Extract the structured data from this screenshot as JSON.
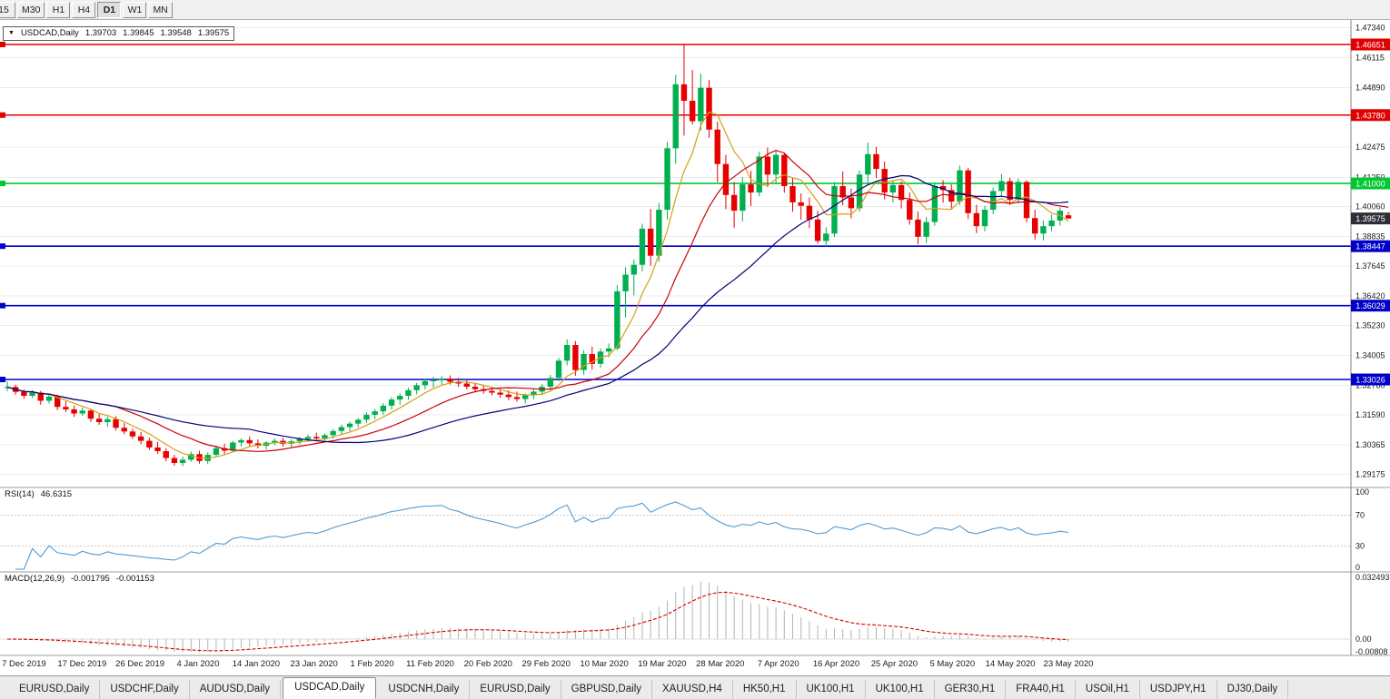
{
  "toolbar": {
    "timeframes": [
      {
        "label": "15",
        "active": false
      },
      {
        "label": "M30",
        "active": false
      },
      {
        "label": "H1",
        "active": false
      },
      {
        "label": "H4",
        "active": false
      },
      {
        "label": "D1",
        "active": true
      },
      {
        "label": "W1",
        "active": false
      },
      {
        "label": "MN",
        "active": false
      }
    ]
  },
  "header": {
    "collapser": "▼",
    "symbol": "USDCAD,Daily",
    "open": "1.39703",
    "high": "1.39845",
    "low": "1.39548",
    "close": "1.39575"
  },
  "price_axis": {
    "ticks": [
      "1.47340",
      "1.46115",
      "1.44890",
      "1.43665",
      "1.42475",
      "1.41250",
      "1.40060",
      "1.38835",
      "1.37645",
      "1.36420",
      "1.35230",
      "1.34005",
      "1.32780",
      "1.31590",
      "1.30365",
      "1.29175"
    ]
  },
  "hlines": [
    {
      "price": 1.46651,
      "label": "1.46651",
      "color": "#e00000"
    },
    {
      "price": 1.4378,
      "label": "1.43780",
      "color": "#e00000"
    },
    {
      "price": 1.41,
      "label": "1.41000",
      "color": "#00c832"
    },
    {
      "price": 1.38447,
      "label": "1.38447",
      "color": "#0000c8"
    },
    {
      "price": 1.36029,
      "label": "1.36029",
      "color": "#0000c8"
    },
    {
      "price": 1.33026,
      "label": "1.33026",
      "color": "#0000c8"
    }
  ],
  "current_price": {
    "value": 1.39575,
    "label": "1.39575",
    "badge_bg": "#2e2e38"
  },
  "indicators": {
    "rsi": {
      "label": "RSI(14)",
      "value": "46.6315",
      "line_color": "#4f9bd5",
      "levels": [
        70,
        30
      ],
      "axis_ticks": [
        {
          "v": 100,
          "label": "100"
        },
        {
          "v": 70,
          "label": "70"
        },
        {
          "v": 30,
          "label": "30"
        },
        {
          "v": 0,
          "label": "0"
        }
      ]
    },
    "macd": {
      "label": "MACD(12,26,9)",
      "value_main": "-0.001795",
      "value_signal": "-0.001153",
      "histogram_color": "#b4b4b4",
      "signal_color": "#d40000",
      "axis_ticks": [
        {
          "v": 0.032493,
          "label": "0.032493"
        },
        {
          "v": 0,
          "label": "0.00"
        },
        {
          "v": -0.00808,
          "label": "-0.00808"
        }
      ]
    }
  },
  "x_axis": {
    "labels": [
      "7 Dec 2019",
      "17 Dec 2019",
      "26 Dec 2019",
      "4 Jan 2020",
      "14 Jan 2020",
      "23 Jan 2020",
      "1 Feb 2020",
      "11 Feb 2020",
      "20 Feb 2020",
      "29 Feb 2020",
      "10 Mar 2020",
      "19 Mar 2020",
      "28 Mar 2020",
      "7 Apr 2020",
      "16 Apr 2020",
      "25 Apr 2020",
      "5 May 2020",
      "14 May 2020",
      "23 May 2020"
    ]
  },
  "tabs": [
    {
      "label": "EURUSD,Daily",
      "active": false
    },
    {
      "label": "USDCHF,Daily",
      "active": false
    },
    {
      "label": "AUDUSD,Daily",
      "active": false
    },
    {
      "label": "USDCAD,Daily",
      "active": true
    },
    {
      "label": "USDCNH,Daily",
      "active": false
    },
    {
      "label": "EURUSD,Daily",
      "active": false
    },
    {
      "label": "GBPUSD,Daily",
      "active": false
    },
    {
      "label": "XAUUSD,H4",
      "active": false
    },
    {
      "label": "HK50,H1",
      "active": false
    },
    {
      "label": "UK100,H1",
      "active": false
    },
    {
      "label": "UK100,H1",
      "active": false
    },
    {
      "label": "GER30,H1",
      "active": false
    },
    {
      "label": "FRA40,H1",
      "active": false
    },
    {
      "label": "USOil,H1",
      "active": false
    },
    {
      "label": "USDJPY,H1",
      "active": false
    },
    {
      "label": "DJ30,Daily",
      "active": false
    }
  ],
  "chart_data": {
    "type": "candlestick",
    "symbol": "USDCAD",
    "timeframe": "Daily",
    "ylim": [
      1.2878,
      1.475
    ],
    "up_color": "#00b050",
    "down_color": "#e60000",
    "moving_averages": [
      {
        "period": 6,
        "color": "#d4a017"
      },
      {
        "period": 14,
        "color": "#cc0000"
      },
      {
        "period": 30,
        "color": "#00007a"
      }
    ],
    "candles": [
      [
        1.3268,
        1.3295,
        1.3255,
        1.3272
      ],
      [
        1.3272,
        1.3281,
        1.324,
        1.3252
      ],
      [
        1.3252,
        1.3263,
        1.3225,
        1.3236
      ],
      [
        1.3236,
        1.3259,
        1.3228,
        1.3249
      ],
      [
        1.3249,
        1.3256,
        1.32,
        1.3216
      ],
      [
        1.3216,
        1.3243,
        1.3205,
        1.3233
      ],
      [
        1.3233,
        1.3241,
        1.3178,
        1.3191
      ],
      [
        1.3191,
        1.3213,
        1.317,
        1.3181
      ],
      [
        1.3181,
        1.3196,
        1.315,
        1.3164
      ],
      [
        1.3164,
        1.3189,
        1.3155,
        1.3176
      ],
      [
        1.3176,
        1.3183,
        1.313,
        1.3143
      ],
      [
        1.3143,
        1.3161,
        1.3118,
        1.3129
      ],
      [
        1.3129,
        1.3151,
        1.311,
        1.3141
      ],
      [
        1.3141,
        1.3153,
        1.3095,
        1.3106
      ],
      [
        1.3106,
        1.3126,
        1.308,
        1.3091
      ],
      [
        1.3091,
        1.3103,
        1.306,
        1.3071
      ],
      [
        1.3071,
        1.3089,
        1.304,
        1.3053
      ],
      [
        1.3053,
        1.3066,
        1.3015,
        1.3026
      ],
      [
        1.3026,
        1.3049,
        1.3,
        1.3011
      ],
      [
        1.3011,
        1.3023,
        1.297,
        1.2983
      ],
      [
        1.2983,
        1.2996,
        1.2952,
        1.2963
      ],
      [
        1.2963,
        1.2989,
        1.295,
        1.2976
      ],
      [
        1.2976,
        1.3009,
        1.2968,
        1.2999
      ],
      [
        1.2999,
        1.3013,
        1.296,
        1.2971
      ],
      [
        1.2971,
        1.3006,
        1.2958,
        1.2996
      ],
      [
        1.2996,
        1.3033,
        1.2988,
        1.3023
      ],
      [
        1.3023,
        1.3041,
        1.3,
        1.3013
      ],
      [
        1.3013,
        1.3053,
        1.3005,
        1.3046
      ],
      [
        1.3046,
        1.3063,
        1.3028,
        1.3056
      ],
      [
        1.3056,
        1.3071,
        1.3032,
        1.3043
      ],
      [
        1.3043,
        1.3059,
        1.3022,
        1.3033
      ],
      [
        1.3033,
        1.3051,
        1.3018,
        1.3046
      ],
      [
        1.3046,
        1.3063,
        1.3035,
        1.3053
      ],
      [
        1.3053,
        1.3066,
        1.303,
        1.3041
      ],
      [
        1.3041,
        1.3059,
        1.3028,
        1.3051
      ],
      [
        1.3051,
        1.3069,
        1.3038,
        1.3061
      ],
      [
        1.3061,
        1.3079,
        1.3048,
        1.3069
      ],
      [
        1.3069,
        1.3086,
        1.3052,
        1.3063
      ],
      [
        1.3063,
        1.3083,
        1.305,
        1.3076
      ],
      [
        1.3076,
        1.3101,
        1.3062,
        1.3093
      ],
      [
        1.3093,
        1.3119,
        1.308,
        1.3109
      ],
      [
        1.3109,
        1.3131,
        1.3092,
        1.3123
      ],
      [
        1.3123,
        1.3146,
        1.3108,
        1.3139
      ],
      [
        1.3139,
        1.3169,
        1.3125,
        1.3159
      ],
      [
        1.3159,
        1.3183,
        1.314,
        1.3173
      ],
      [
        1.3173,
        1.3206,
        1.3158,
        1.3196
      ],
      [
        1.3196,
        1.3231,
        1.318,
        1.3221
      ],
      [
        1.3221,
        1.3246,
        1.32,
        1.3236
      ],
      [
        1.3236,
        1.3269,
        1.322,
        1.3259
      ],
      [
        1.3259,
        1.3289,
        1.3242,
        1.3279
      ],
      [
        1.3279,
        1.3306,
        1.3262,
        1.3296
      ],
      [
        1.3296,
        1.3313,
        1.327,
        1.3299
      ],
      [
        1.3299,
        1.3316,
        1.328,
        1.3306
      ],
      [
        1.3306,
        1.3319,
        1.3282,
        1.3293
      ],
      [
        1.3293,
        1.3309,
        1.3272,
        1.3286
      ],
      [
        1.3286,
        1.3299,
        1.3262,
        1.3273
      ],
      [
        1.3273,
        1.3289,
        1.3252,
        1.3263
      ],
      [
        1.3263,
        1.3281,
        1.3245,
        1.3256
      ],
      [
        1.3256,
        1.3273,
        1.3238,
        1.3249
      ],
      [
        1.3249,
        1.3266,
        1.3228,
        1.3241
      ],
      [
        1.3241,
        1.3259,
        1.3218,
        1.3231
      ],
      [
        1.3231,
        1.3253,
        1.3212,
        1.3223
      ],
      [
        1.3223,
        1.3246,
        1.3205,
        1.3239
      ],
      [
        1.3239,
        1.3263,
        1.3222,
        1.3253
      ],
      [
        1.3253,
        1.3283,
        1.3238,
        1.3273
      ],
      [
        1.3273,
        1.3321,
        1.3258,
        1.3309
      ],
      [
        1.3309,
        1.3391,
        1.3295,
        1.3379
      ],
      [
        1.3379,
        1.3466,
        1.336,
        1.3443
      ],
      [
        1.3443,
        1.3459,
        1.3318,
        1.3341
      ],
      [
        1.3341,
        1.3421,
        1.3322,
        1.3406
      ],
      [
        1.3406,
        1.3436,
        1.3342,
        1.3366
      ],
      [
        1.3366,
        1.3429,
        1.335,
        1.3416
      ],
      [
        1.3416,
        1.3449,
        1.3392,
        1.3429
      ],
      [
        1.3429,
        1.3686,
        1.3421,
        1.3661
      ],
      [
        1.3661,
        1.3759,
        1.3555,
        1.3729
      ],
      [
        1.3729,
        1.3791,
        1.3645,
        1.3769
      ],
      [
        1.3769,
        1.3936,
        1.3742,
        1.3916
      ],
      [
        1.3916,
        1.3996,
        1.3765,
        1.3806
      ],
      [
        1.3806,
        1.4021,
        1.3782,
        1.3993
      ],
      [
        1.3993,
        1.4269,
        1.3952,
        1.4243
      ],
      [
        1.4243,
        1.4541,
        1.418,
        1.4503
      ],
      [
        1.4503,
        1.4668,
        1.4295,
        1.4436
      ],
      [
        1.4436,
        1.4561,
        1.434,
        1.4353
      ],
      [
        1.4353,
        1.4546,
        1.4315,
        1.4489
      ],
      [
        1.4489,
        1.4521,
        1.4285,
        1.4319
      ],
      [
        1.4319,
        1.4351,
        1.4105,
        1.4179
      ],
      [
        1.4179,
        1.4216,
        1.3995,
        1.4053
      ],
      [
        1.4053,
        1.4106,
        1.392,
        1.3989
      ],
      [
        1.3989,
        1.4126,
        1.3945,
        1.4096
      ],
      [
        1.4096,
        1.4151,
        1.4008,
        1.4063
      ],
      [
        1.4063,
        1.4229,
        1.4048,
        1.4209
      ],
      [
        1.4209,
        1.4246,
        1.4085,
        1.4136
      ],
      [
        1.4136,
        1.4233,
        1.4098,
        1.4216
      ],
      [
        1.4216,
        1.4223,
        1.4062,
        1.4089
      ],
      [
        1.4089,
        1.4123,
        1.3985,
        1.4023
      ],
      [
        1.4023,
        1.4059,
        1.3952,
        1.4009
      ],
      [
        1.4009,
        1.4043,
        1.3918,
        1.3953
      ],
      [
        1.3953,
        1.3989,
        1.3855,
        1.3866
      ],
      [
        1.3866,
        1.3921,
        1.3842,
        1.3896
      ],
      [
        1.3896,
        1.4106,
        1.3882,
        1.4089
      ],
      [
        1.4089,
        1.4149,
        1.4012,
        1.4043
      ],
      [
        1.4043,
        1.4079,
        1.3958,
        1.3999
      ],
      [
        1.3999,
        1.4153,
        1.3985,
        1.4136
      ],
      [
        1.4136,
        1.4266,
        1.4098,
        1.4219
      ],
      [
        1.4219,
        1.4249,
        1.4122,
        1.4159
      ],
      [
        1.4159,
        1.4189,
        1.4035,
        1.4063
      ],
      [
        1.4063,
        1.4113,
        1.4022,
        1.4093
      ],
      [
        1.4093,
        1.4109,
        1.3998,
        1.4033
      ],
      [
        1.4033,
        1.4063,
        1.3932,
        1.3953
      ],
      [
        1.3953,
        1.3986,
        1.3852,
        1.3883
      ],
      [
        1.3883,
        1.3963,
        1.3858,
        1.3943
      ],
      [
        1.3943,
        1.4103,
        1.3928,
        1.4089
      ],
      [
        1.4089,
        1.4113,
        1.4022,
        1.4073
      ],
      [
        1.4073,
        1.4096,
        1.3998,
        1.4026
      ],
      [
        1.4026,
        1.4173,
        1.4012,
        1.4153
      ],
      [
        1.4153,
        1.4163,
        1.3955,
        1.3979
      ],
      [
        1.3979,
        1.4013,
        1.3898,
        1.3926
      ],
      [
        1.3926,
        1.4009,
        1.3905,
        1.3993
      ],
      [
        1.3993,
        1.4083,
        1.3975,
        1.4069
      ],
      [
        1.4069,
        1.4139,
        1.4045,
        1.4109
      ],
      [
        1.4109,
        1.4123,
        1.4012,
        1.4033
      ],
      [
        1.4033,
        1.4119,
        1.4018,
        1.4106
      ],
      [
        1.4106,
        1.4113,
        1.3942,
        1.3959
      ],
      [
        1.3959,
        1.3993,
        1.3872,
        1.3896
      ],
      [
        1.3896,
        1.3949,
        1.3868,
        1.3926
      ],
      [
        1.3926,
        1.3973,
        1.3905,
        1.3949
      ],
      [
        1.3949,
        1.4003,
        1.3928,
        1.3989
      ],
      [
        1.39703,
        1.39845,
        1.39548,
        1.39575
      ]
    ]
  }
}
